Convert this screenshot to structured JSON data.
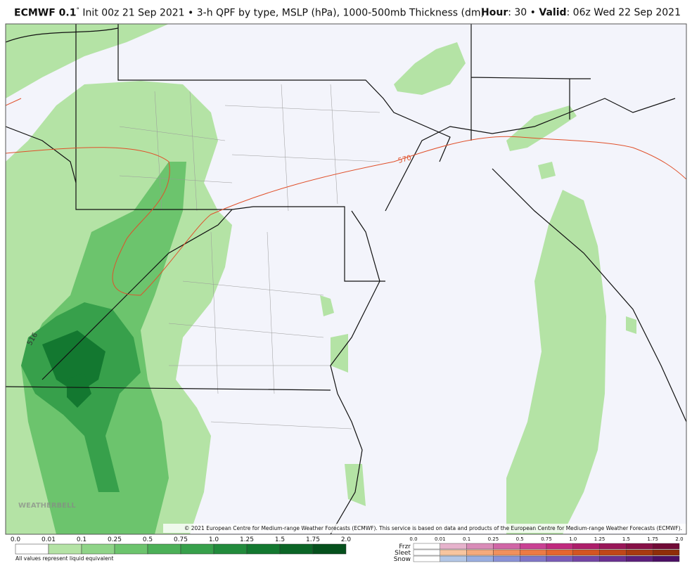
{
  "header": {
    "model": "ECMWF 0.1",
    "degree": "°",
    "description": " Init 00z 21 Sep 2021 • 3-h QPF by type, MSLP (hPa), 1000-500mb Thickness (dm)",
    "hour_label": "Hour",
    "hour_value": ": 30 • ",
    "valid_label": "Valid",
    "valid_value": ": 06z Wed 22 Sep 2021"
  },
  "map": {
    "contour_labels": [
      "570",
      "516"
    ],
    "watermark": "WEATHERBELL",
    "copyright": "© 2021 European Centre for Medium-range Weather Forecasts (ECMWF). This service is based on data and products of the European Centre for Medium-range Weather Forecasts (ECMWF)."
  },
  "legend": {
    "rain": {
      "labels": [
        "0.0",
        "0.01",
        "0.1",
        "0.25",
        "0.5",
        "0.75",
        "1.0",
        "1.25",
        "1.5",
        "1.75",
        "2.0"
      ],
      "colors": [
        "#ffffff",
        "#b4e3a5",
        "#8fd488",
        "#6cc46d",
        "#4cb058",
        "#37a04b",
        "#228b3c",
        "#137830",
        "#0b6526",
        "#05501c"
      ],
      "note": "All values represent liquid equivalent"
    },
    "mixed": {
      "labels": [
        "0.0",
        "0.01",
        "0.1",
        "0.25",
        "0.5",
        "0.75",
        "1.0",
        "1.25",
        "1.5",
        "1.75",
        "2.0"
      ],
      "rows": [
        {
          "name": "Frzr",
          "colors": [
            "#ffffff",
            "#e6b3cc",
            "#d98cb8",
            "#d066a6",
            "#c94193",
            "#c02a7e",
            "#ad1e6a",
            "#991658",
            "#861046",
            "#700a36"
          ]
        },
        {
          "name": "Sleet",
          "colors": [
            "#ffffff",
            "#f7c59f",
            "#f4aa7c",
            "#f0905d",
            "#ec7a44",
            "#e5662f",
            "#d35522",
            "#c04718",
            "#a83a10",
            "#8f2e08"
          ]
        },
        {
          "name": "Snow",
          "colors": [
            "#ffffff",
            "#b3c7e6",
            "#9aaee0",
            "#8a92d6",
            "#8076c8",
            "#7a5cb8",
            "#7345a5",
            "#6a3192",
            "#5c1f7c",
            "#4b1065"
          ]
        }
      ]
    }
  }
}
